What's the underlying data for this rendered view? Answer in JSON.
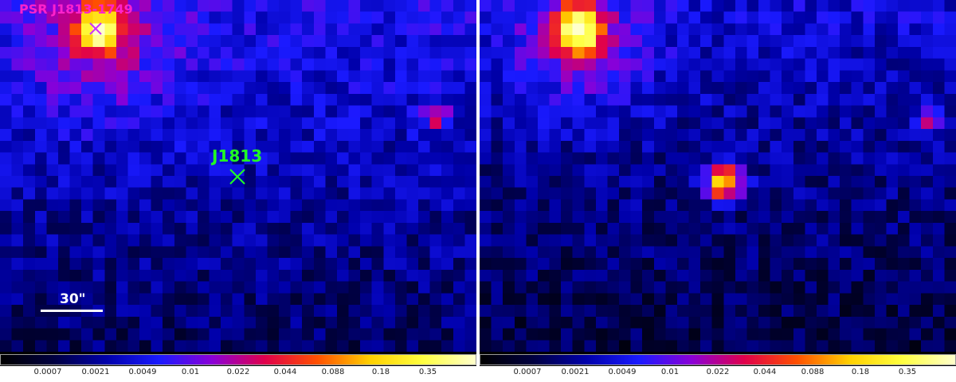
{
  "left_panel": {
    "labels": {
      "pulsar": "PSR J1813-1749",
      "source": "J1813",
      "scale": "30\""
    },
    "marker_colors": {
      "pulsar": "#cc33ff",
      "source": "#22ff22"
    }
  },
  "right_panel": {},
  "colorbar": {
    "ticks": [
      "0.0007",
      "0.0021",
      "0.0049",
      "0.01",
      "0.022",
      "0.044",
      "0.088",
      "0.18",
      "0.35"
    ],
    "colormap": [
      "#000000",
      "#000040",
      "#0000aa",
      "#1a1aff",
      "#8a00d8",
      "#e0004c",
      "#ff5000",
      "#ffd000",
      "#ffff40",
      "#ffffcc"
    ]
  }
}
